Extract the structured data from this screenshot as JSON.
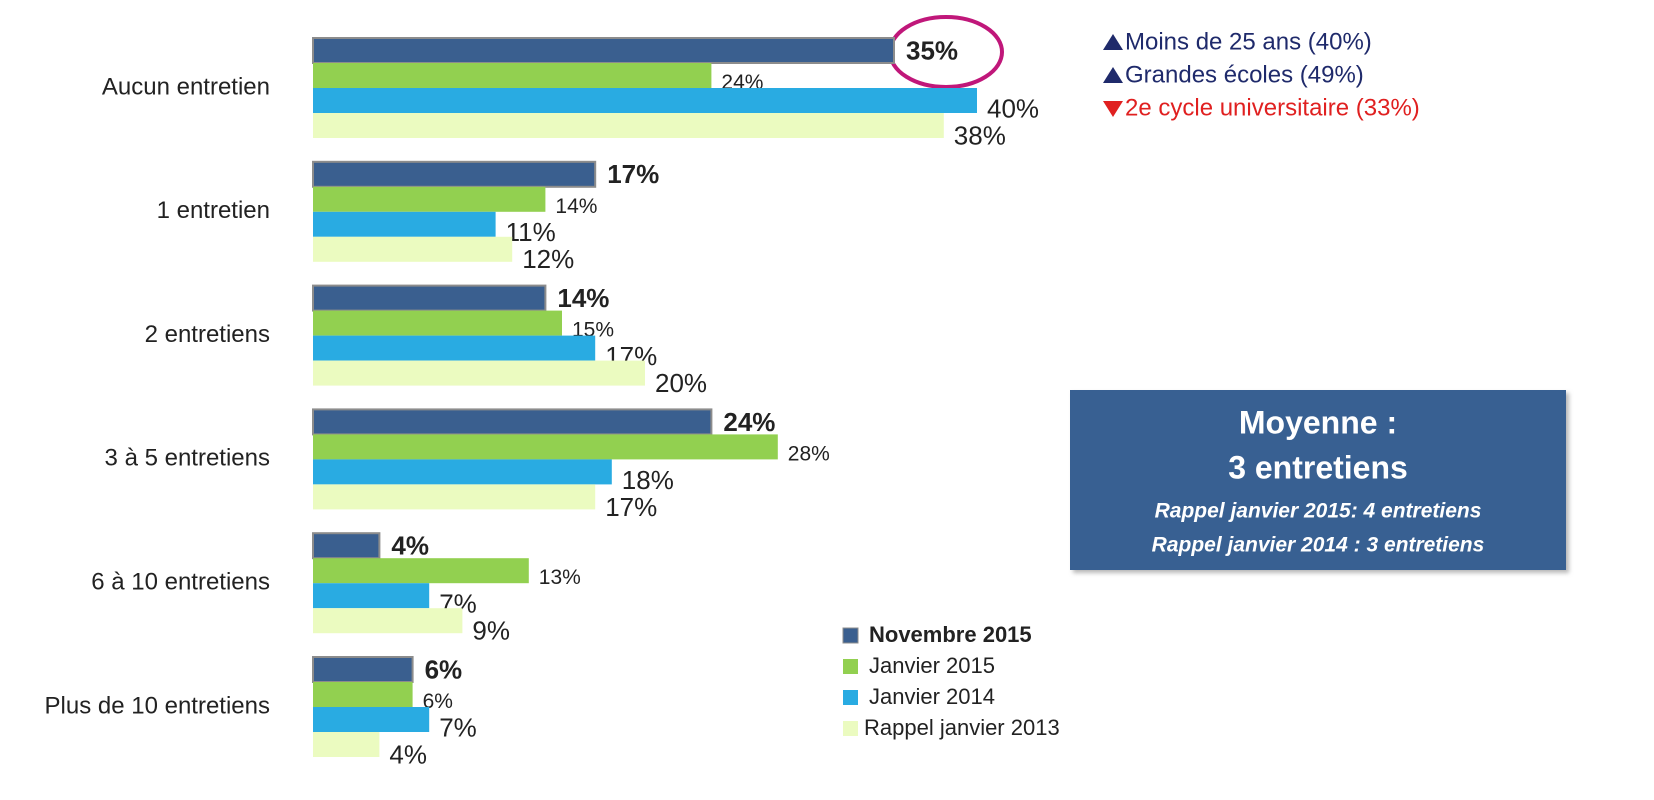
{
  "chart_data": {
    "type": "bar",
    "orientation": "horizontal",
    "categories": [
      "Aucun entretien",
      "1 entretien",
      "2 entretiens",
      "3 à 5 entretiens",
      "6 à 10 entretiens",
      "Plus de 10 entretiens"
    ],
    "series": [
      {
        "name": "Novembre 2015",
        "color": "#3a5f8f",
        "values": [
          35,
          17,
          14,
          24,
          4,
          6
        ],
        "value_labels": [
          "35%",
          "17%",
          "14%",
          "24%",
          "4%",
          "6%"
        ]
      },
      {
        "name": "Janvier 2015",
        "color": "#92d050",
        "values": [
          24,
          14,
          15,
          28,
          13,
          6
        ],
        "value_labels": [
          "24%",
          "14%",
          "15%",
          "28%",
          "13%",
          "6%"
        ]
      },
      {
        "name": "Janvier 2014",
        "color": "#29abe2",
        "values": [
          40,
          11,
          17,
          18,
          7,
          7
        ],
        "value_labels": [
          "40%",
          "11%",
          "17%",
          "18%",
          "7%",
          "7%"
        ]
      },
      {
        "name": "Rappel janvier 2013",
        "color": "#ebfbc0",
        "values": [
          38,
          12,
          20,
          17,
          9,
          4
        ],
        "value_labels": [
          "38%",
          "12%",
          "20%",
          "17%",
          "9%",
          "4%"
        ]
      }
    ],
    "annotations": [
      {
        "text": "Moins de 25 ans (40%)",
        "color": "#1f2a6b",
        "direction": "up"
      },
      {
        "text": "Grandes écoles (49%)",
        "color": "#1f2a6b",
        "direction": "up"
      },
      {
        "text": "2e cycle universitaire (33%)",
        "color": "#e02020",
        "direction": "down"
      }
    ],
    "summary_box": {
      "title": "Moyenne :",
      "value": "3 entretiens",
      "notes": [
        "Rappel janvier 2015: 4 entretiens",
        "Rappel janvier 2014 : 3 entretiens"
      ]
    },
    "legend": "bottom-right"
  }
}
